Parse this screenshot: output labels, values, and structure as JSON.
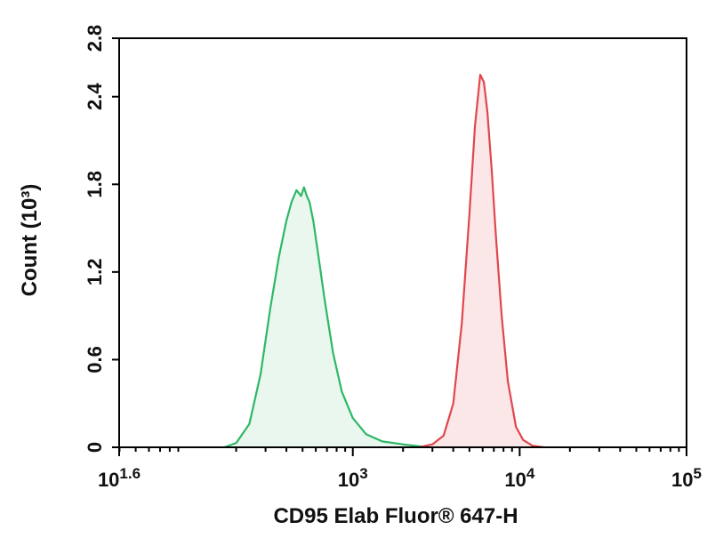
{
  "chart_data": {
    "type": "area",
    "xscale": "log",
    "xlim": [
      39.8,
      100000
    ],
    "ylim": [
      0,
      2.8
    ],
    "xlabel": "CD95 Elab Fluor® 647-H",
    "ylabel": "Count (10³)",
    "grid": false,
    "legend": "none",
    "x_ticks": [
      {
        "value": 39.8,
        "base": "10",
        "exp": "1.6"
      },
      {
        "value": 1000,
        "base": "10",
        "exp": "3"
      },
      {
        "value": 10000,
        "base": "10",
        "exp": "4"
      },
      {
        "value": 100000,
        "base": "10",
        "exp": "5"
      }
    ],
    "y_ticks": [
      {
        "value": 0,
        "label": "0"
      },
      {
        "value": 0.6,
        "label": "0.6"
      },
      {
        "value": 1.2,
        "label": "1.2"
      },
      {
        "value": 1.8,
        "label": "1.8"
      },
      {
        "value": 2.4,
        "label": "2.4"
      },
      {
        "value": 2.8,
        "label": "2.8"
      }
    ],
    "series": [
      {
        "stroke": "#2db866",
        "fill": "#e9f7ee",
        "x": [
          170,
          200,
          240,
          280,
          320,
          360,
          400,
          430,
          460,
          490,
          510,
          530,
          550,
          580,
          620,
          680,
          760,
          860,
          1000,
          1200,
          1500,
          2000,
          2800
        ],
        "y": [
          0.0,
          0.03,
          0.16,
          0.5,
          0.95,
          1.3,
          1.55,
          1.68,
          1.76,
          1.72,
          1.78,
          1.72,
          1.68,
          1.55,
          1.32,
          1.0,
          0.65,
          0.38,
          0.2,
          0.09,
          0.04,
          0.02,
          0.0
        ]
      },
      {
        "stroke": "#e0474d",
        "fill": "#fbe7e8",
        "x": [
          2500,
          3000,
          3500,
          4000,
          4500,
          5000,
          5400,
          5800,
          6100,
          6400,
          6800,
          7200,
          7800,
          8500,
          9500,
          10500,
          12000,
          14000
        ],
        "y": [
          0.0,
          0.02,
          0.08,
          0.3,
          0.85,
          1.6,
          2.2,
          2.55,
          2.5,
          2.3,
          1.9,
          1.45,
          0.9,
          0.45,
          0.14,
          0.05,
          0.01,
          0.0
        ]
      }
    ]
  }
}
